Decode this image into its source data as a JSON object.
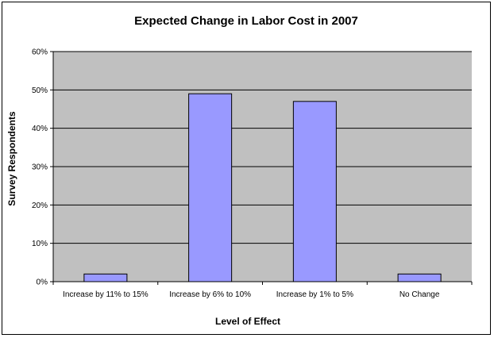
{
  "chart_data": {
    "type": "bar",
    "title": "Expected Change in Labor Cost in 2007",
    "xlabel": "Level of Effect",
    "ylabel": "Survey Respondents",
    "categories": [
      "Increase by 11% to 15%",
      "Increase by 6% to 10%",
      "Increase by 1% to 5%",
      "No Change"
    ],
    "values": [
      2,
      49,
      47,
      2
    ],
    "value_unit": "%",
    "ylim": [
      0,
      60
    ],
    "yticks": [
      "0%",
      "10%",
      "20%",
      "30%",
      "40%",
      "50%",
      "60%"
    ],
    "grid": true,
    "legend": "none",
    "colors": {
      "plot_background": "#c0c0c0",
      "bar_fill": "#9999ff",
      "bar_stroke": "#000000",
      "gridline": "#000000"
    }
  }
}
